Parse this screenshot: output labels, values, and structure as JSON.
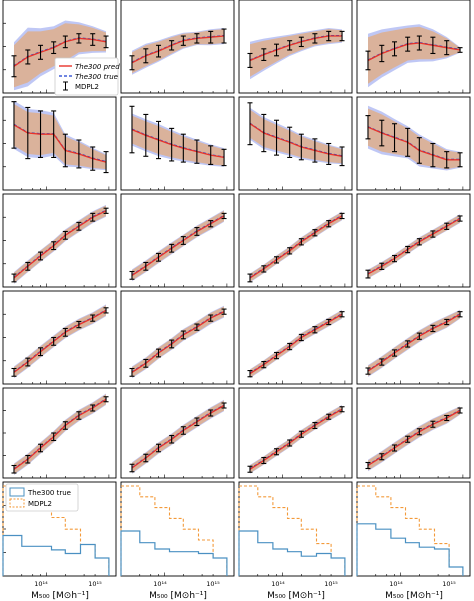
{
  "figure": {
    "legend_top": {
      "pred": "The300 pred",
      "true": "The300 true",
      "mdpl2": "MDPL2"
    },
    "legend_bottom": {
      "true": "The300 true",
      "mdpl2": "MDPL2"
    },
    "xticklabels": [
      "10¹⁴",
      "10¹⁵"
    ],
    "xlabel": "M₅₀₀ [M⊙h⁻¹]"
  },
  "colors": {
    "pred": "#e8332a",
    "true": "#1a3fcf",
    "err": "#000000",
    "band_pred": "#e8a86a",
    "band_true": "#a9b4f2",
    "hist_true": "#4a90c2",
    "hist_mdpl2": "#f39a3a"
  },
  "chart_data": {
    "type": "line",
    "layout": "6 rows x 4 columns grid of subplots",
    "xscale": "log",
    "x_common": [
      30000000000000.0,
      50000000000000.0,
      80000000000000.0,
      130000000000000.0,
      200000000000000.0,
      330000000000000.0,
      550000000000000.0,
      900000000000000.0
    ],
    "panels": [
      {
        "row": 0,
        "col": 0,
        "y": [
          -0.85,
          -0.45,
          -0.25,
          -0.05,
          0.2,
          0.35,
          0.3,
          0.2
        ],
        "err": [
          0.45,
          0.3,
          0.3,
          0.25,
          0.25,
          0.2,
          0.25,
          0.25
        ],
        "band": [
          0.9,
          1.1,
          0.9,
          0.8,
          0.8,
          0.6,
          0.5,
          0.4
        ],
        "ylim": [
          -2,
          2
        ]
      },
      {
        "row": 0,
        "col": 1,
        "y": [
          -0.7,
          -0.4,
          -0.2,
          0.05,
          0.25,
          0.35,
          0.4,
          0.45
        ],
        "err": [
          0.3,
          0.3,
          0.25,
          0.2,
          0.2,
          0.2,
          0.25,
          0.3
        ],
        "band": [
          0.45,
          0.45,
          0.4,
          0.35,
          0.3,
          0.25,
          0.3,
          0.3
        ],
        "ylim": [
          -2,
          2
        ]
      },
      {
        "row": 0,
        "col": 2,
        "y": [
          -0.6,
          -0.35,
          -0.15,
          0.05,
          0.2,
          0.35,
          0.45,
          0.45
        ],
        "err": [
          0.3,
          0.25,
          0.25,
          0.2,
          0.2,
          0.2,
          0.2,
          0.2
        ],
        "band": [
          0.7,
          0.6,
          0.5,
          0.4,
          0.35,
          0.3,
          0.3,
          0.25
        ],
        "ylim": [
          -2,
          2
        ]
      },
      {
        "row": 0,
        "col": 3,
        "y": [
          -0.6,
          -0.3,
          -0.1,
          0.1,
          0.15,
          0.05,
          -0.05,
          -0.15
        ],
        "err": [
          0.4,
          0.35,
          0.3,
          0.3,
          0.3,
          0.35,
          0.3,
          0.1
        ],
        "band": [
          1.0,
          0.9,
          0.8,
          0.7,
          0.7,
          0.6,
          0.4,
          0.1
        ],
        "ylim": [
          -2,
          2
        ]
      },
      {
        "row": 1,
        "col": 0,
        "y": [
          0.8,
          0.45,
          0.4,
          0.4,
          -0.3,
          -0.45,
          -0.65,
          -0.8
        ],
        "err": [
          1.0,
          1.1,
          1.0,
          1.0,
          0.7,
          0.6,
          0.5,
          0.45
        ],
        "band": [
          0.9,
          0.9,
          0.9,
          0.8,
          0.6,
          0.5,
          0.4,
          0.3
        ],
        "ylim": [
          -2,
          2
        ]
      },
      {
        "row": 1,
        "col": 1,
        "y": [
          0.6,
          0.35,
          0.15,
          -0.05,
          -0.2,
          -0.35,
          -0.5,
          -0.6
        ],
        "err": [
          1.0,
          0.9,
          0.8,
          0.7,
          0.6,
          0.5,
          0.4,
          0.35
        ],
        "band": [
          0.6,
          0.6,
          0.6,
          0.55,
          0.5,
          0.45,
          0.4,
          0.35
        ],
        "ylim": [
          -2,
          2
        ]
      },
      {
        "row": 1,
        "col": 2,
        "y": [
          0.85,
          0.45,
          0.25,
          0.05,
          -0.15,
          -0.3,
          -0.45,
          -0.55
        ],
        "err": [
          0.9,
          0.8,
          0.75,
          0.65,
          0.55,
          0.5,
          0.45,
          0.4
        ],
        "band": [
          0.6,
          0.6,
          0.55,
          0.5,
          0.45,
          0.4,
          0.35,
          0.3
        ],
        "ylim": [
          -2,
          2
        ]
      },
      {
        "row": 1,
        "col": 3,
        "y": [
          0.7,
          0.45,
          0.25,
          0.05,
          -0.3,
          -0.5,
          -0.7,
          -0.7
        ],
        "err": [
          0.5,
          0.55,
          0.6,
          0.6,
          0.55,
          0.5,
          0.35,
          0.3
        ],
        "band": [
          0.8,
          0.8,
          0.7,
          0.6,
          0.6,
          0.5,
          0.4,
          0.3
        ],
        "ylim": [
          -2,
          2
        ]
      },
      {
        "row": 2,
        "col": 0,
        "y": [
          -1.45,
          -1.0,
          -0.6,
          -0.2,
          0.2,
          0.55,
          0.9,
          1.15
        ],
        "err": [
          0.15,
          0.15,
          0.15,
          0.15,
          0.15,
          0.15,
          0.15,
          0.1
        ],
        "band": [
          0.2,
          0.2,
          0.2,
          0.2,
          0.2,
          0.2,
          0.2,
          0.2
        ],
        "ylim": [
          -1.8,
          1.8
        ]
      },
      {
        "row": 2,
        "col": 1,
        "y": [
          -1.35,
          -1.0,
          -0.65,
          -0.3,
          0.0,
          0.35,
          0.65,
          0.95
        ],
        "err": [
          0.15,
          0.15,
          0.15,
          0.15,
          0.15,
          0.15,
          0.12,
          0.1
        ],
        "band": [
          0.2,
          0.2,
          0.2,
          0.2,
          0.2,
          0.2,
          0.2,
          0.2
        ],
        "ylim": [
          -1.8,
          1.8
        ]
      },
      {
        "row": 2,
        "col": 2,
        "y": [
          -1.45,
          -1.1,
          -0.75,
          -0.4,
          -0.05,
          0.3,
          0.65,
          0.95
        ],
        "err": [
          0.15,
          0.12,
          0.12,
          0.12,
          0.12,
          0.12,
          0.12,
          0.1
        ],
        "band": [
          0.15,
          0.15,
          0.15,
          0.15,
          0.15,
          0.15,
          0.15,
          0.15
        ],
        "ylim": [
          -1.8,
          1.8
        ]
      },
      {
        "row": 2,
        "col": 3,
        "y": [
          -1.3,
          -1.0,
          -0.7,
          -0.35,
          -0.05,
          0.25,
          0.55,
          0.85
        ],
        "err": [
          0.15,
          0.12,
          0.12,
          0.12,
          0.12,
          0.12,
          0.12,
          0.1
        ],
        "band": [
          0.15,
          0.15,
          0.15,
          0.15,
          0.15,
          0.15,
          0.15,
          0.15
        ],
        "ylim": [
          -1.8,
          1.8
        ]
      },
      {
        "row": 3,
        "col": 0,
        "y": [
          -1.35,
          -0.95,
          -0.55,
          -0.15,
          0.2,
          0.5,
          0.75,
          1.05
        ],
        "err": [
          0.15,
          0.15,
          0.15,
          0.15,
          0.15,
          0.12,
          0.12,
          0.1
        ],
        "band": [
          0.2,
          0.2,
          0.2,
          0.2,
          0.2,
          0.2,
          0.2,
          0.2
        ],
        "ylim": [
          -1.8,
          1.8
        ]
      },
      {
        "row": 3,
        "col": 1,
        "y": [
          -1.35,
          -1.0,
          -0.6,
          -0.25,
          0.1,
          0.4,
          0.75,
          1.0
        ],
        "err": [
          0.15,
          0.15,
          0.15,
          0.15,
          0.15,
          0.12,
          0.12,
          0.1
        ],
        "band": [
          0.2,
          0.2,
          0.2,
          0.2,
          0.2,
          0.2,
          0.2,
          0.2
        ],
        "ylim": [
          -1.8,
          1.8
        ]
      },
      {
        "row": 3,
        "col": 2,
        "y": [
          -1.4,
          -1.05,
          -0.7,
          -0.35,
          0.0,
          0.3,
          0.6,
          0.9
        ],
        "err": [
          0.12,
          0.12,
          0.12,
          0.12,
          0.12,
          0.12,
          0.1,
          0.1
        ],
        "band": [
          0.15,
          0.15,
          0.15,
          0.15,
          0.15,
          0.15,
          0.15,
          0.15
        ],
        "ylim": [
          -1.8,
          1.8
        ]
      },
      {
        "row": 3,
        "col": 3,
        "y": [
          -1.3,
          -0.95,
          -0.6,
          -0.25,
          0.05,
          0.35,
          0.6,
          0.9
        ],
        "err": [
          0.12,
          0.12,
          0.12,
          0.12,
          0.12,
          0.12,
          0.1,
          0.1
        ],
        "band": [
          0.2,
          0.2,
          0.2,
          0.2,
          0.2,
          0.2,
          0.2,
          0.15
        ],
        "ylim": [
          -1.8,
          1.8
        ]
      },
      {
        "row": 4,
        "col": 0,
        "y": [
          -1.45,
          -1.05,
          -0.6,
          -0.15,
          0.3,
          0.7,
          1.0,
          1.35
        ],
        "err": [
          0.15,
          0.15,
          0.15,
          0.15,
          0.15,
          0.15,
          0.12,
          0.1
        ],
        "band": [
          0.2,
          0.2,
          0.2,
          0.2,
          0.2,
          0.2,
          0.2,
          0.2
        ],
        "ylim": [
          -1.8,
          1.8
        ]
      },
      {
        "row": 4,
        "col": 1,
        "y": [
          -1.4,
          -1.0,
          -0.6,
          -0.25,
          0.1,
          0.45,
          0.8,
          1.1
        ],
        "err": [
          0.15,
          0.15,
          0.15,
          0.15,
          0.15,
          0.15,
          0.12,
          0.1
        ],
        "band": [
          0.2,
          0.2,
          0.2,
          0.2,
          0.2,
          0.2,
          0.2,
          0.2
        ],
        "ylim": [
          -1.8,
          1.8
        ]
      },
      {
        "row": 4,
        "col": 2,
        "y": [
          -1.45,
          -1.1,
          -0.75,
          -0.4,
          -0.05,
          0.3,
          0.65,
          0.95
        ],
        "err": [
          0.12,
          0.12,
          0.12,
          0.12,
          0.12,
          0.12,
          0.1,
          0.1
        ],
        "band": [
          0.15,
          0.15,
          0.15,
          0.15,
          0.15,
          0.15,
          0.15,
          0.15
        ],
        "ylim": [
          -1.8,
          1.8
        ]
      },
      {
        "row": 4,
        "col": 3,
        "y": [
          -1.3,
          -0.95,
          -0.6,
          -0.25,
          0.05,
          0.35,
          0.6,
          0.9
        ],
        "err": [
          0.12,
          0.12,
          0.12,
          0.12,
          0.12,
          0.12,
          0.1,
          0.1
        ],
        "band": [
          0.2,
          0.2,
          0.2,
          0.2,
          0.2,
          0.2,
          0.2,
          0.15
        ],
        "ylim": [
          -1.8,
          1.8
        ]
      }
    ],
    "histograms": {
      "bin_edges": [
        20000000000000.0,
        40000000000000.0,
        70000000000000.0,
        120000000000000.0,
        200000000000000.0,
        350000000000000.0,
        600000000000000.0,
        1000000000000000.0
      ],
      "panels": [
        {
          "col": 0,
          "the300_true": [
            0.45,
            0.33,
            0.33,
            0.29,
            0.25,
            0.35,
            0.2
          ],
          "mdpl2": [
            1.0,
            0.88,
            0.76,
            0.65,
            0.52,
            0.35,
            0.2
          ]
        },
        {
          "col": 1,
          "the300_true": [
            0.5,
            0.37,
            0.3,
            0.27,
            0.27,
            0.25,
            0.2
          ],
          "mdpl2": [
            1.0,
            0.88,
            0.76,
            0.64,
            0.52,
            0.4,
            0.2
          ]
        },
        {
          "col": 2,
          "the300_true": [
            0.5,
            0.37,
            0.3,
            0.27,
            0.22,
            0.25,
            0.2
          ],
          "mdpl2": [
            1.0,
            0.88,
            0.76,
            0.64,
            0.52,
            0.36,
            0.2
          ]
        },
        {
          "col": 3,
          "the300_true": [
            0.58,
            0.52,
            0.42,
            0.37,
            0.32,
            0.3,
            0.1
          ],
          "mdpl2": [
            1.0,
            0.88,
            0.76,
            0.64,
            0.52,
            0.36,
            0.1
          ]
        }
      ]
    }
  }
}
